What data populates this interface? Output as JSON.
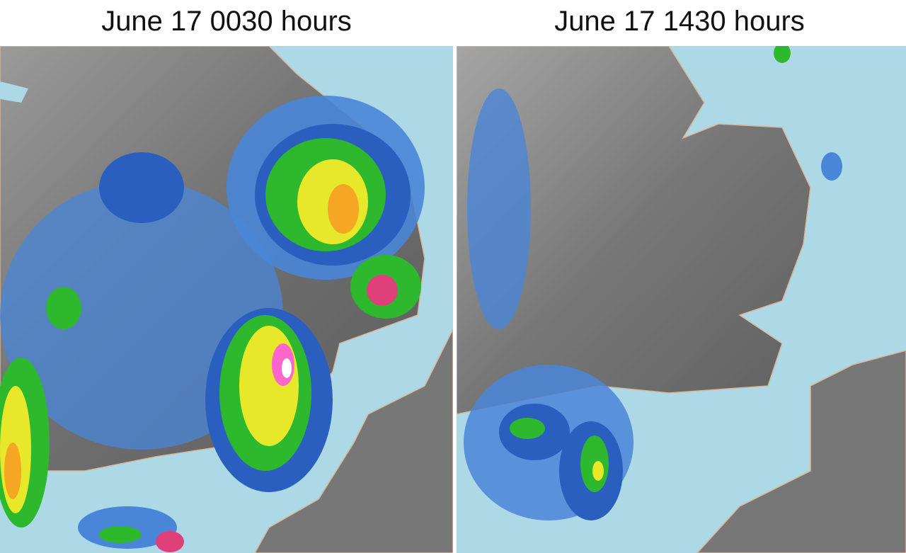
{
  "panels": [
    {
      "title": "June 17 0030 hours"
    },
    {
      "title": "June 17 1430 hours"
    }
  ]
}
